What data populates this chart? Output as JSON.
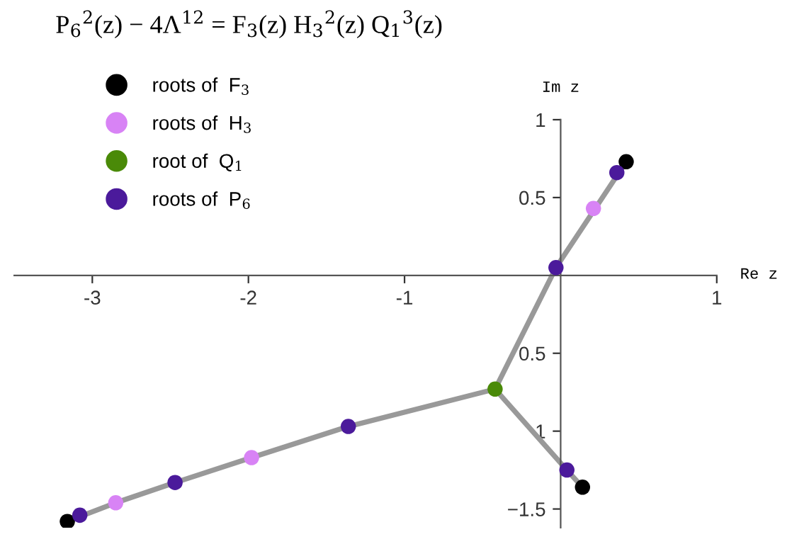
{
  "chart_data": {
    "type": "scatter",
    "title": "P$_{6}$$^{2}$(z) − 4Λ$^{12}$ = F$_{3}$(z) H$_{3}$$^{2}$(z) Q$_{1}$$^{3}$(z)",
    "xlabel": "Re z",
    "ylabel": "Im z",
    "xlim": [
      -3.5,
      1
    ],
    "ylim": [
      -1.62,
      1
    ],
    "xticks": [
      -3,
      -2,
      -1,
      1
    ],
    "yticks": [
      {
        "value": -1.5,
        "label": "−1.5"
      },
      {
        "value": -1,
        "label": "1"
      },
      {
        "value": -0.5,
        "label": "0.5"
      },
      0.5,
      1
    ],
    "grid": false,
    "legend": "top left",
    "series": [
      {
        "type": "line",
        "color": "#999999",
        "x": [
          0.42,
          -0.03,
          -0.42
        ],
        "values": [
          0.73,
          0.05,
          -0.73
        ]
      },
      {
        "type": "line",
        "color": "#999999",
        "x": [
          -0.42,
          -1.36,
          -1.98,
          -2.47,
          -2.85,
          -3.16
        ],
        "values": [
          -0.73,
          -0.97,
          -1.17,
          -1.33,
          -1.46,
          -1.58
        ]
      },
      {
        "type": "line",
        "color": "#999999",
        "x": [
          -0.42,
          0.04,
          0.14
        ],
        "values": [
          -0.73,
          -1.25,
          -1.36
        ]
      },
      {
        "name": "roots of  F$_{3}$",
        "marker": "circle",
        "color": "#000000",
        "x": [
          0.42,
          -3.16,
          0.14
        ],
        "values": [
          0.73,
          -1.58,
          -1.36
        ]
      },
      {
        "name": "roots of  H$_{3}$",
        "marker": "circle",
        "color": "#d883f5",
        "x": [
          0.21,
          -1.98,
          -2.85
        ],
        "values": [
          0.43,
          -1.17,
          -1.46
        ]
      },
      {
        "name": "root of  Q$_{1}$",
        "marker": "circle",
        "color": "#4a8a08",
        "x": [
          -0.42
        ],
        "values": [
          -0.73
        ]
      },
      {
        "name": "roots of  P$_{6}$",
        "marker": "circle",
        "color": "#4b1a9b",
        "x": [
          0.36,
          -0.03,
          -1.36,
          -2.47,
          -3.08,
          0.04
        ],
        "values": [
          0.66,
          0.05,
          -0.97,
          -1.33,
          -1.54,
          -1.25
        ]
      }
    ]
  }
}
